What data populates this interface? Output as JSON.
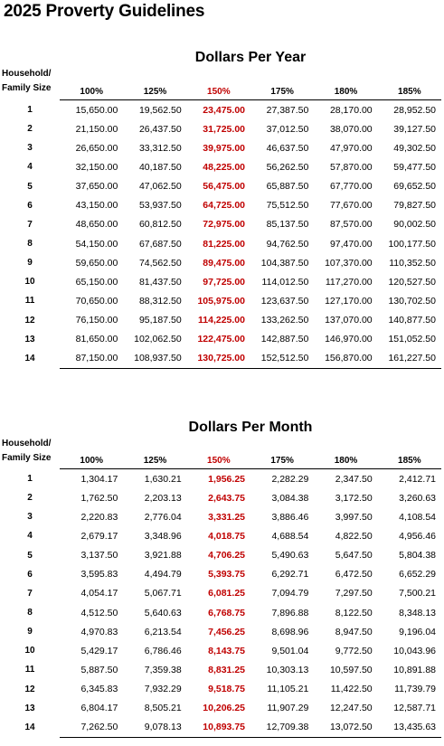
{
  "page_title": "2025 Proverty Guidelines",
  "year": {
    "title": "Dollars Per Year",
    "size_header": [
      "Household/",
      "Family Size"
    ],
    "columns": [
      "100%",
      "125%",
      "150%",
      "175%",
      "180%",
      "185%"
    ],
    "highlight_column": "150%",
    "rows": [
      {
        "size": "1",
        "values": [
          "15,650.00",
          "19,562.50",
          "23,475.00",
          "27,387.50",
          "28,170.00",
          "28,952.50"
        ]
      },
      {
        "size": "2",
        "values": [
          "21,150.00",
          "26,437.50",
          "31,725.00",
          "37,012.50",
          "38,070.00",
          "39,127.50"
        ]
      },
      {
        "size": "3",
        "values": [
          "26,650.00",
          "33,312.50",
          "39,975.00",
          "46,637.50",
          "47,970.00",
          "49,302.50"
        ]
      },
      {
        "size": "4",
        "values": [
          "32,150.00",
          "40,187.50",
          "48,225.00",
          "56,262.50",
          "57,870.00",
          "59,477.50"
        ]
      },
      {
        "size": "5",
        "values": [
          "37,650.00",
          "47,062.50",
          "56,475.00",
          "65,887.50",
          "67,770.00",
          "69,652.50"
        ]
      },
      {
        "size": "6",
        "values": [
          "43,150.00",
          "53,937.50",
          "64,725.00",
          "75,512.50",
          "77,670.00",
          "79,827.50"
        ]
      },
      {
        "size": "7",
        "values": [
          "48,650.00",
          "60,812.50",
          "72,975.00",
          "85,137.50",
          "87,570.00",
          "90,002.50"
        ]
      },
      {
        "size": "8",
        "values": [
          "54,150.00",
          "67,687.50",
          "81,225.00",
          "94,762.50",
          "97,470.00",
          "100,177.50"
        ]
      },
      {
        "size": "9",
        "values": [
          "59,650.00",
          "74,562.50",
          "89,475.00",
          "104,387.50",
          "107,370.00",
          "110,352.50"
        ]
      },
      {
        "size": "10",
        "values": [
          "65,150.00",
          "81,437.50",
          "97,725.00",
          "114,012.50",
          "117,270.00",
          "120,527.50"
        ]
      },
      {
        "size": "11",
        "values": [
          "70,650.00",
          "88,312.50",
          "105,975.00",
          "123,637.50",
          "127,170.00",
          "130,702.50"
        ]
      },
      {
        "size": "12",
        "values": [
          "76,150.00",
          "95,187.50",
          "114,225.00",
          "133,262.50",
          "137,070.00",
          "140,877.50"
        ]
      },
      {
        "size": "13",
        "values": [
          "81,650.00",
          "102,062.50",
          "122,475.00",
          "142,887.50",
          "146,970.00",
          "151,052.50"
        ]
      },
      {
        "size": "14",
        "values": [
          "87,150.00",
          "108,937.50",
          "130,725.00",
          "152,512.50",
          "156,870.00",
          "161,227.50"
        ]
      }
    ]
  },
  "month": {
    "title": "Dollars Per Month",
    "size_header": [
      "Household/",
      "Family Size"
    ],
    "columns": [
      "100%",
      "125%",
      "150%",
      "175%",
      "180%",
      "185%"
    ],
    "highlight_column": "150%",
    "rows": [
      {
        "size": "1",
        "values": [
          "1,304.17",
          "1,630.21",
          "1,956.25",
          "2,282.29",
          "2,347.50",
          "2,412.71"
        ]
      },
      {
        "size": "2",
        "values": [
          "1,762.50",
          "2,203.13",
          "2,643.75",
          "3,084.38",
          "3,172.50",
          "3,260.63"
        ]
      },
      {
        "size": "3",
        "values": [
          "2,220.83",
          "2,776.04",
          "3,331.25",
          "3,886.46",
          "3,997.50",
          "4,108.54"
        ]
      },
      {
        "size": "4",
        "values": [
          "2,679.17",
          "3,348.96",
          "4,018.75",
          "4,688.54",
          "4,822.50",
          "4,956.46"
        ]
      },
      {
        "size": "5",
        "values": [
          "3,137.50",
          "3,921.88",
          "4,706.25",
          "5,490.63",
          "5,647.50",
          "5,804.38"
        ]
      },
      {
        "size": "6",
        "values": [
          "3,595.83",
          "4,494.79",
          "5,393.75",
          "6,292.71",
          "6,472.50",
          "6,652.29"
        ]
      },
      {
        "size": "7",
        "values": [
          "4,054.17",
          "5,067.71",
          "6,081.25",
          "7,094.79",
          "7,297.50",
          "7,500.21"
        ]
      },
      {
        "size": "8",
        "values": [
          "4,512.50",
          "5,640.63",
          "6,768.75",
          "7,896.88",
          "8,122.50",
          "8,348.13"
        ]
      },
      {
        "size": "9",
        "values": [
          "4,970.83",
          "6,213.54",
          "7,456.25",
          "8,698.96",
          "8,947.50",
          "9,196.04"
        ]
      },
      {
        "size": "10",
        "values": [
          "5,429.17",
          "6,786.46",
          "8,143.75",
          "9,501.04",
          "9,772.50",
          "10,043.96"
        ]
      },
      {
        "size": "11",
        "values": [
          "5,887.50",
          "7,359.38",
          "8,831.25",
          "10,303.13",
          "10,597.50",
          "10,891.88"
        ]
      },
      {
        "size": "12",
        "values": [
          "6,345.83",
          "7,932.29",
          "9,518.75",
          "11,105.21",
          "11,422.50",
          "11,739.79"
        ]
      },
      {
        "size": "13",
        "values": [
          "6,804.17",
          "8,505.21",
          "10,206.25",
          "11,907.29",
          "12,247.50",
          "12,587.71"
        ]
      },
      {
        "size": "14",
        "values": [
          "7,262.50",
          "9,078.13",
          "10,893.75",
          "12,709.38",
          "13,072.50",
          "13,435.63"
        ]
      }
    ]
  },
  "colors": {
    "highlight": "#c00000",
    "text": "#000000",
    "rule": "#000000"
  }
}
